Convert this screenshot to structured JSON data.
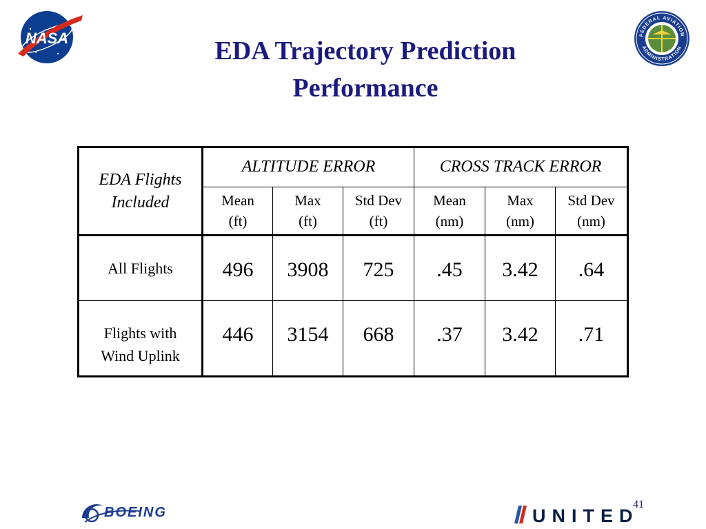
{
  "slide": {
    "title_line1": "EDA Trajectory Prediction",
    "title_line2": "Performance",
    "page_number": "41"
  },
  "logos": {
    "top_left": "NASA",
    "bottom_left": "BOEING",
    "bottom_right": "UNITED",
    "top_right_text_top": "FEDERAL AVIATION",
    "top_right_text_bottom": "ADMINISTRATION"
  },
  "table": {
    "corner_line1": "EDA Flights",
    "corner_line2": "Included",
    "groups": [
      "ALTITUDE ERROR",
      "CROSS TRACK ERROR"
    ],
    "columns": [
      {
        "label": "Mean",
        "unit": "(ft)"
      },
      {
        "label": "Max",
        "unit": "(ft)"
      },
      {
        "label": "Std Dev",
        "unit": "(ft)"
      },
      {
        "label": "Mean",
        "unit": "(nm)"
      },
      {
        "label": "Max",
        "unit": "(nm)"
      },
      {
        "label": "Std Dev",
        "unit": "(nm)"
      }
    ],
    "rows": [
      {
        "label_line1": "All Flights",
        "label_line2": "",
        "values": [
          "496",
          "3908",
          "725",
          ".45",
          "3.42",
          ".64"
        ]
      },
      {
        "label_line1": "Flights with",
        "label_line2": "Wind Uplink",
        "values": [
          "446",
          "3154",
          "668",
          ".37",
          "3.42",
          ".71"
        ]
      }
    ]
  },
  "colors": {
    "title": "#1b1b7e",
    "nasa_blue": "#0b3d91",
    "nasa_red": "#d52b1e",
    "faa_blue": "#1a3d8f",
    "boeing_blue": "#1d3c8f",
    "united_navy": "#0a1f44"
  }
}
